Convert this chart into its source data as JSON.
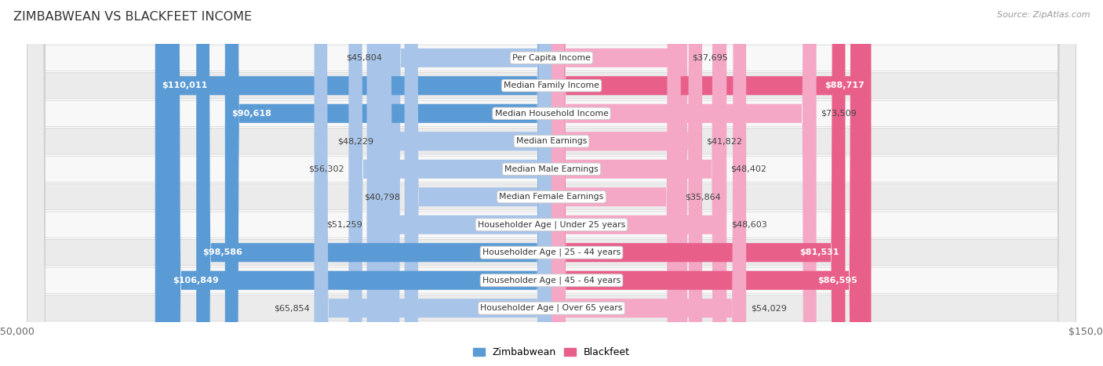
{
  "title": "ZIMBABWEAN VS BLACKFEET INCOME",
  "source": "Source: ZipAtlas.com",
  "categories": [
    "Per Capita Income",
    "Median Family Income",
    "Median Household Income",
    "Median Earnings",
    "Median Male Earnings",
    "Median Female Earnings",
    "Householder Age | Under 25 years",
    "Householder Age | 25 - 44 years",
    "Householder Age | 45 - 64 years",
    "Householder Age | Over 65 years"
  ],
  "zimbabwean_values": [
    45804,
    110011,
    90618,
    48229,
    56302,
    40798,
    51259,
    98586,
    106849,
    65854
  ],
  "blackfeet_values": [
    37695,
    88717,
    73509,
    41822,
    48402,
    35864,
    48603,
    81531,
    86595,
    54029
  ],
  "zimbabwean_labels": [
    "$45,804",
    "$110,011",
    "$90,618",
    "$48,229",
    "$56,302",
    "$40,798",
    "$51,259",
    "$98,586",
    "$106,849",
    "$65,854"
  ],
  "blackfeet_labels": [
    "$37,695",
    "$88,717",
    "$73,509",
    "$41,822",
    "$48,402",
    "$35,864",
    "$48,603",
    "$81,531",
    "$86,595",
    "$54,029"
  ],
  "max_value": 150000,
  "zim_color_light": "#a8c4e8",
  "zim_color_dark": "#5b9bd5",
  "blk_color_light": "#f4a8c6",
  "blk_color_dark": "#e8608a",
  "row_bg_light": "#f8f8f8",
  "row_bg_dark": "#ebebeb",
  "large_threshold": 80000
}
